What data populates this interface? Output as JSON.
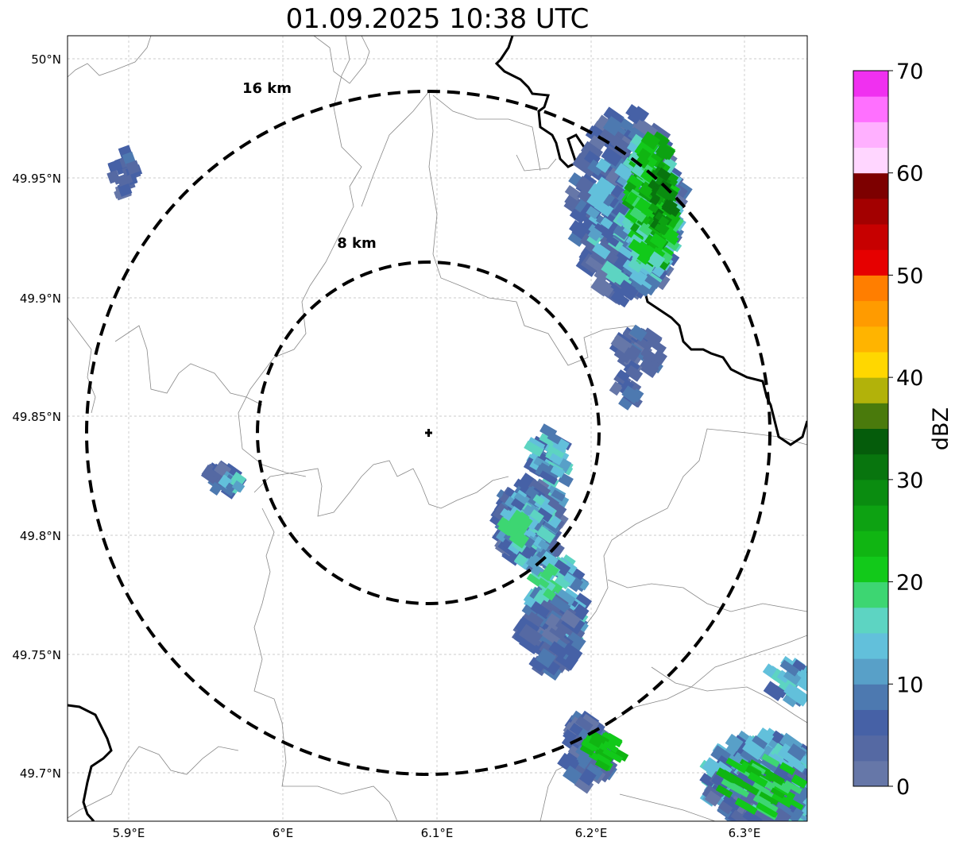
{
  "title": "01.09.2025 10:38 UTC",
  "map": {
    "lon_range": [
      5.86,
      6.34
    ],
    "lat_range": [
      49.68,
      50.01
    ],
    "x_ticks": [
      {
        "value": 5.9,
        "label": "5.9°E"
      },
      {
        "value": 6.0,
        "label": "6°E"
      },
      {
        "value": 6.1,
        "label": "6.1°E"
      },
      {
        "value": 6.2,
        "label": "6.2°E"
      },
      {
        "value": 6.3,
        "label": "6.3°E"
      }
    ],
    "y_ticks": [
      {
        "value": 50.0,
        "label": "50°N"
      },
      {
        "value": 49.95,
        "label": "49.95°N"
      },
      {
        "value": 49.9,
        "label": "49.9°N"
      },
      {
        "value": 49.85,
        "label": "49.85°N"
      },
      {
        "value": 49.8,
        "label": "49.8°N"
      },
      {
        "value": 49.75,
        "label": "49.75°N"
      },
      {
        "value": 49.7,
        "label": "49.7°N"
      }
    ],
    "gridlines": true,
    "radar_site": {
      "lon": 6.095,
      "lat": 49.843
    },
    "range_rings": [
      {
        "radius_km": 8,
        "label": "8 km"
      },
      {
        "radius_km": 16,
        "label": "16 km"
      }
    ]
  },
  "colorbar": {
    "title": "dBZ",
    "ticks": [
      {
        "value": 0,
        "label": "0"
      },
      {
        "value": 10,
        "label": "10"
      },
      {
        "value": 20,
        "label": "20"
      },
      {
        "value": 30,
        "label": "30"
      },
      {
        "value": 40,
        "label": "40"
      },
      {
        "value": 50,
        "label": "50"
      },
      {
        "value": 60,
        "label": "60"
      },
      {
        "value": 70,
        "label": "70"
      }
    ],
    "colors": [
      "#6677a8",
      "#5569a3",
      "#4661a6",
      "#4d79b0",
      "#58a0c8",
      "#62c0db",
      "#5dd4c2",
      "#3dd672",
      "#12c91a",
      "#10b512",
      "#0da212",
      "#0a8c10",
      "#08750e",
      "#055c0b",
      "#4a7a0c",
      "#b2b20a",
      "#ffd700",
      "#ffb400",
      "#ff9b00",
      "#ff7e00",
      "#e60000",
      "#c70000",
      "#a30000",
      "#7d0000",
      "#ffd6ff",
      "#ffb0ff",
      "#ff70ff",
      "#f030f0"
    ]
  }
}
